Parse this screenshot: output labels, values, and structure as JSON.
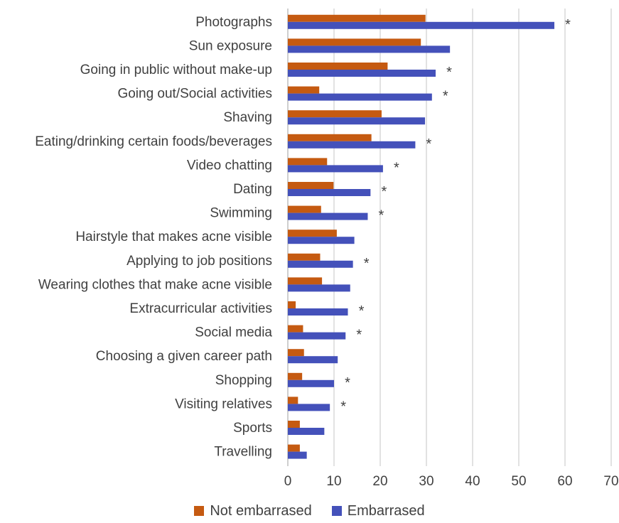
{
  "chart_data": {
    "type": "bar",
    "orientation": "horizontal",
    "title": "",
    "xlabel": "",
    "ylabel": "",
    "xlim": [
      0,
      70
    ],
    "xticks": [
      0,
      10,
      20,
      30,
      40,
      50,
      60,
      70
    ],
    "grid": "vertical",
    "legend_position": "bottom",
    "categories": [
      "Photographs",
      "Sun exposure",
      "Going in public without make-up",
      "Going out/Social activities",
      "Shaving",
      "Eating/drinking certain foods/beverages",
      "Video chatting",
      "Dating",
      "Swimming",
      "Hairstyle that makes acne visible",
      "Applying to job positions",
      "Wearing clothes that make acne visible",
      "Extracurricular activities",
      "Social media",
      "Choosing a given career path",
      "Shopping",
      "Visiting relatives",
      "Sports",
      "Travelling"
    ],
    "series": [
      {
        "name": "Not embarrased",
        "color": "#C55A11",
        "values": [
          29.8,
          28.8,
          21.6,
          6.8,
          20.3,
          18.1,
          8.5,
          9.9,
          7.2,
          10.6,
          7.0,
          7.4,
          1.7,
          3.3,
          3.5,
          3.1,
          2.2,
          2.6,
          2.6
        ]
      },
      {
        "name": "Embarrased",
        "color": "#4451BA",
        "values": [
          57.7,
          35.1,
          32.0,
          31.2,
          29.7,
          27.6,
          20.6,
          17.9,
          17.3,
          14.4,
          14.1,
          13.5,
          13.0,
          12.5,
          10.8,
          10.0,
          9.1,
          7.9,
          4.1
        ]
      }
    ],
    "annotations": [
      {
        "category_index": 0,
        "text": "*"
      },
      {
        "category_index": 2,
        "text": "*"
      },
      {
        "category_index": 3,
        "text": "*"
      },
      {
        "category_index": 5,
        "text": "*"
      },
      {
        "category_index": 6,
        "text": "*"
      },
      {
        "category_index": 7,
        "text": "*"
      },
      {
        "category_index": 8,
        "text": "*"
      },
      {
        "category_index": 10,
        "text": "*"
      },
      {
        "category_index": 12,
        "text": "*"
      },
      {
        "category_index": 13,
        "text": "*"
      },
      {
        "category_index": 15,
        "text": "*"
      },
      {
        "category_index": 16,
        "text": "*"
      }
    ]
  }
}
